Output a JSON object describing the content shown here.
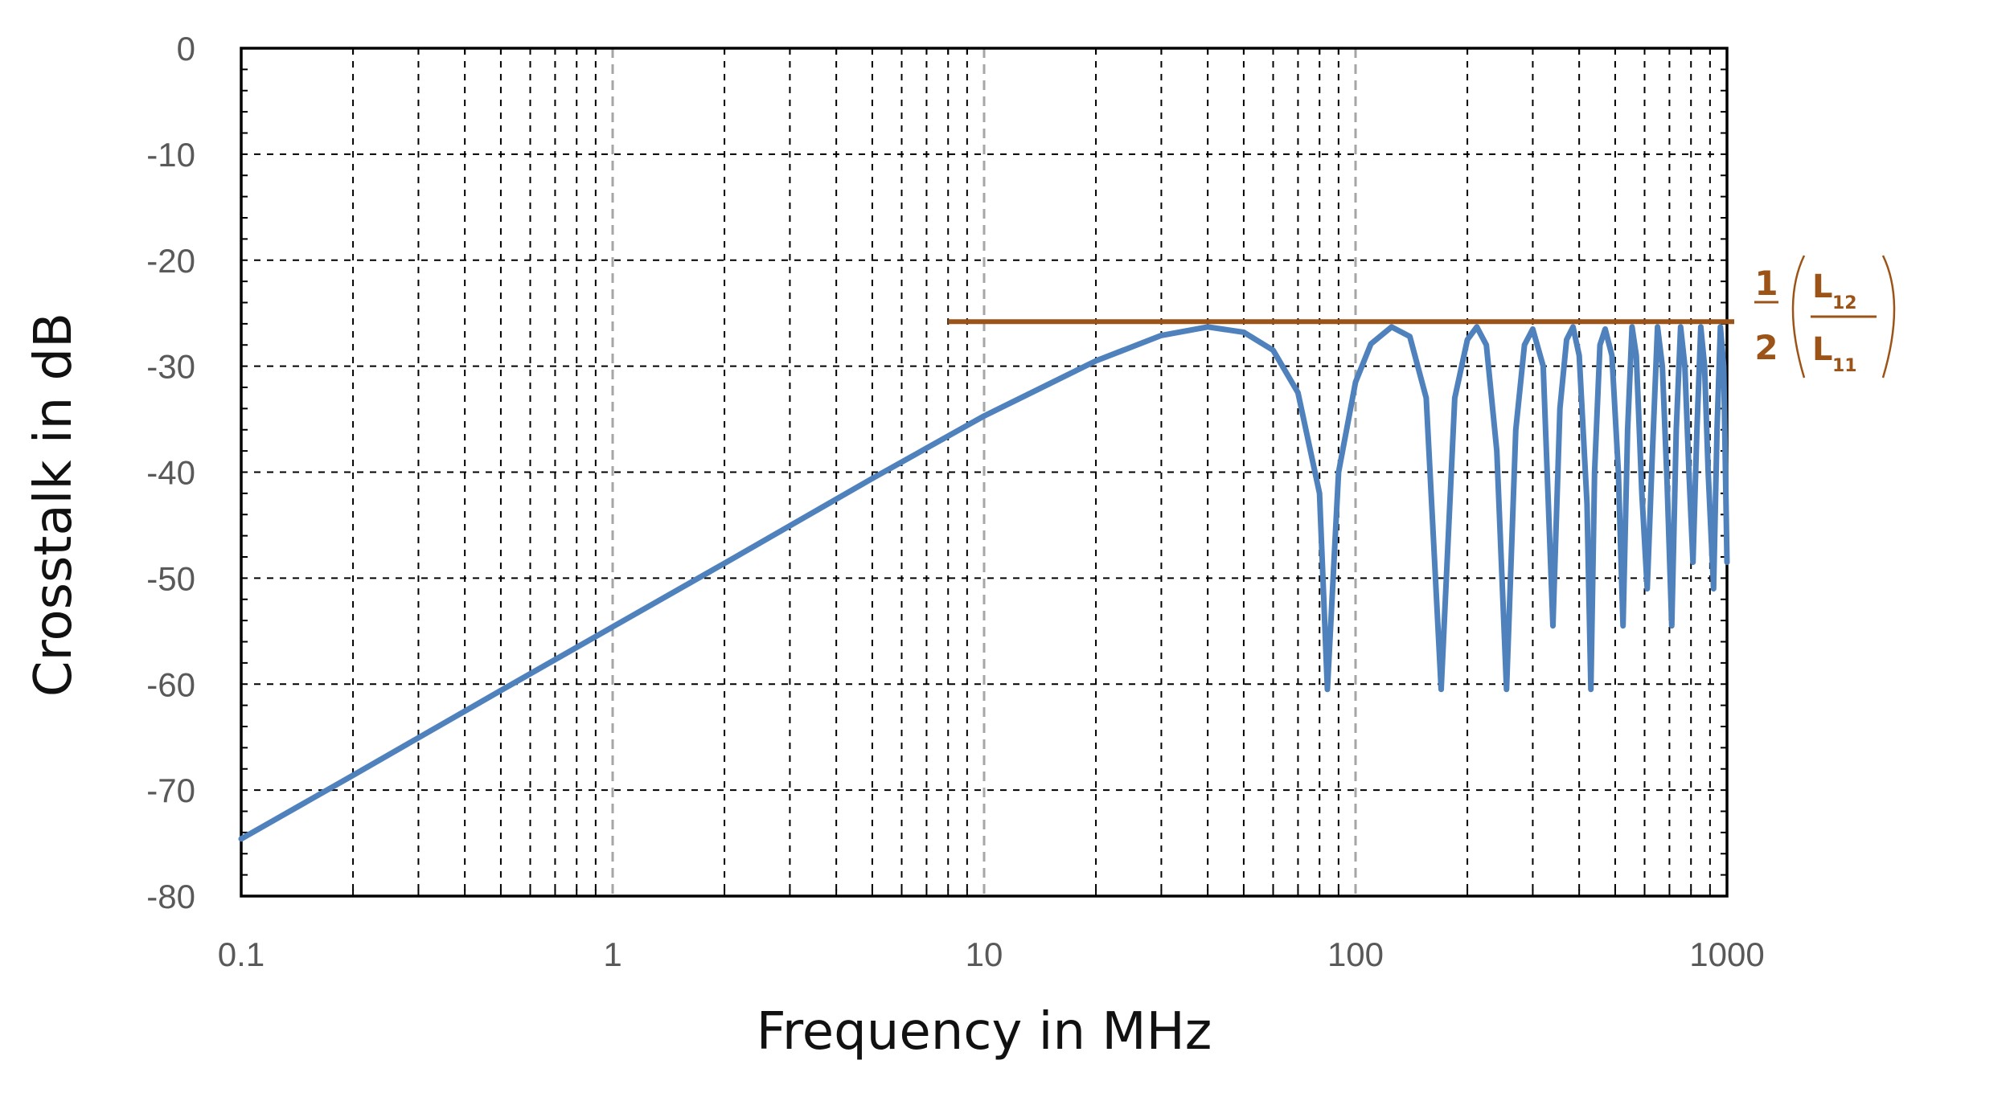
{
  "chart_data": {
    "type": "line",
    "title": "",
    "xlabel": "Frequency in MHz",
    "ylabel": "Crosstalk in dB",
    "x_scale": "log",
    "xlim": [
      0.1,
      1000
    ],
    "ylim": [
      -80,
      0
    ],
    "x_ticks": [
      {
        "value": 0.1,
        "label": "0.1"
      },
      {
        "value": 1,
        "label": "1"
      },
      {
        "value": 10,
        "label": "10"
      },
      {
        "value": 100,
        "label": "100"
      },
      {
        "value": 1000,
        "label": "1000"
      }
    ],
    "y_ticks": [
      {
        "value": 0,
        "label": "0"
      },
      {
        "value": -10,
        "label": "-10"
      },
      {
        "value": -20,
        "label": "-20"
      },
      {
        "value": -30,
        "label": "-30"
      },
      {
        "value": -40,
        "label": "-40"
      },
      {
        "value": -50,
        "label": "-50"
      },
      {
        "value": -60,
        "label": "-60"
      },
      {
        "value": -70,
        "label": "-70"
      },
      {
        "value": -80,
        "label": "-80"
      }
    ],
    "grid": true,
    "legend": "none",
    "series": [
      {
        "color": "#4f81bd",
        "points": [
          [
            0.1,
            -74.6
          ],
          [
            0.2,
            -68.6
          ],
          [
            0.5,
            -60.6
          ],
          [
            1,
            -54.6
          ],
          [
            2,
            -48.6
          ],
          [
            5,
            -40.6
          ],
          [
            10,
            -34.7
          ],
          [
            20,
            -29.5
          ],
          [
            30,
            -27.1
          ],
          [
            40,
            -26.3
          ],
          [
            50,
            -26.8
          ],
          [
            60,
            -28.5
          ],
          [
            70,
            -32.5
          ],
          [
            80,
            -42
          ],
          [
            84,
            -60.5
          ],
          [
            90,
            -40
          ],
          [
            100,
            -31.5
          ],
          [
            110,
            -27.9
          ],
          [
            125,
            -26.3
          ],
          [
            140,
            -27.2
          ],
          [
            155,
            -33
          ],
          [
            170,
            -60.5
          ],
          [
            185,
            -33
          ],
          [
            200,
            -27.5
          ],
          [
            212,
            -26.3
          ],
          [
            225,
            -28
          ],
          [
            240,
            -38
          ],
          [
            255,
            -60.5
          ],
          [
            270,
            -36
          ],
          [
            285,
            -28
          ],
          [
            300,
            -26.5
          ],
          [
            320,
            -30
          ],
          [
            340,
            -54.5
          ],
          [
            355,
            -34
          ],
          [
            370,
            -27.5
          ],
          [
            385,
            -26.3
          ],
          [
            400,
            -29
          ],
          [
            420,
            -43
          ],
          [
            430,
            -60.5
          ],
          [
            440,
            -40
          ],
          [
            455,
            -28
          ],
          [
            470,
            -26.5
          ],
          [
            490,
            -29
          ],
          [
            510,
            -40
          ],
          [
            525,
            -54.5
          ],
          [
            540,
            -36
          ],
          [
            555,
            -26.3
          ],
          [
            570,
            -29
          ],
          [
            590,
            -42
          ],
          [
            610,
            -51
          ],
          [
            630,
            -38
          ],
          [
            650,
            -26.3
          ],
          [
            670,
            -30
          ],
          [
            690,
            -41
          ],
          [
            710,
            -54.5
          ],
          [
            730,
            -36
          ],
          [
            750,
            -26.3
          ],
          [
            770,
            -30
          ],
          [
            790,
            -40
          ],
          [
            810,
            -48.5
          ],
          [
            830,
            -36
          ],
          [
            850,
            -26.3
          ],
          [
            870,
            -30
          ],
          [
            890,
            -40
          ],
          [
            920,
            -51
          ],
          [
            940,
            -36
          ],
          [
            960,
            -26.3
          ],
          [
            980,
            -30
          ],
          [
            1000,
            -48.5
          ]
        ]
      }
    ],
    "annotations": [
      {
        "type": "hline",
        "y": -25.8,
        "x_from": 8,
        "x_to": 1000,
        "color": "#9c5317",
        "formula": {
          "numerator": "1",
          "denominator": "2",
          "top_L": "L",
          "top_sub": "12",
          "bottom_L": "L",
          "bottom_sub": "11"
        }
      }
    ]
  }
}
